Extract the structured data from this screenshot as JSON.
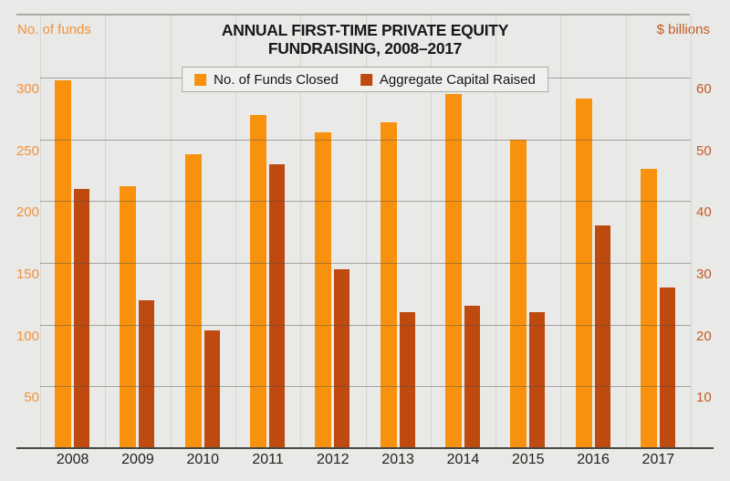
{
  "header": {
    "title_line1": "ANNUAL FIRST-TIME PRIVATE EQUITY",
    "title_line2": "FUNDRAISING, 2008–2017",
    "left_axis_unit": "No. of funds",
    "right_axis_unit": "$ billions"
  },
  "legend": {
    "funds_label": "No. of Funds Closed",
    "capital_label": "Aggregate Capital Raised"
  },
  "colors": {
    "background": "#E9E9E7",
    "funds_bar": "#F8920E",
    "capital_bar": "#BF4A10",
    "left_axis_text": "#F0923B",
    "right_axis_text": "#C35A24",
    "year_text": "#242220",
    "gridline": "#D6D6D2"
  },
  "chart_data": {
    "type": "bar",
    "title": "ANNUAL FIRST-TIME PRIVATE EQUITY FUNDRAISING, 2008–2017",
    "categories": [
      "2008",
      "2009",
      "2010",
      "2011",
      "2012",
      "2013",
      "2014",
      "2015",
      "2016",
      "2017"
    ],
    "series": [
      {
        "name": "No. of Funds Closed",
        "axis": "left",
        "values": [
          298,
          212,
          238,
          270,
          256,
          264,
          287,
          250,
          283,
          226
        ]
      },
      {
        "name": "Aggregate Capital Raised",
        "axis": "right",
        "values": [
          42,
          24,
          19,
          46,
          29,
          22,
          23,
          22,
          36,
          26
        ]
      }
    ],
    "left_axis": {
      "label": "No. of funds",
      "min": 0,
      "max": 300,
      "tick_step": 50,
      "ticks": [
        50,
        100,
        150,
        200,
        250,
        300
      ]
    },
    "right_axis": {
      "label": "$ billions",
      "min": 0,
      "max": 60,
      "tick_step": 10,
      "ticks": [
        10,
        20,
        30,
        40,
        50,
        60
      ]
    },
    "grid": true,
    "legend_position": "top-center"
  }
}
